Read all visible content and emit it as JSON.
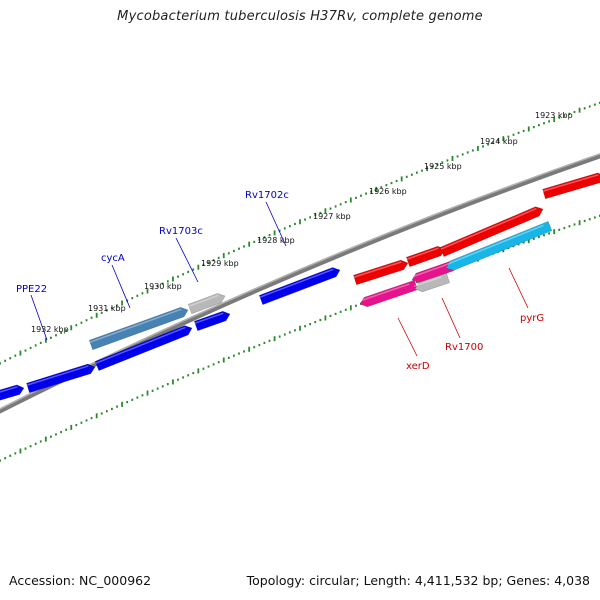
{
  "title": "Mycobacterium tuberculosis H37Rv, complete genome",
  "footer": {
    "accession": "Accession: NC_000962",
    "summary": "Topology: circular; Length: 4,411,532 bp; Genes: 4,038"
  },
  "colors": {
    "backbone": "#808080",
    "ticks": "#2a8a2a",
    "forward_label": "#0000cc",
    "reverse_label": "#cc0000",
    "blue": "#0000ee",
    "steelblue": "#4682b4",
    "grey": "#b8b8b8",
    "red": "#ee0000",
    "magenta": "#e6148c",
    "skyblue": "#18b6e8"
  },
  "scale_labels": [
    "1932 kbp",
    "1931 kbp",
    "1930 kbp",
    "1929 kbp",
    "1928 kbp",
    "1927 kbp",
    "1926 kbp",
    "1925 kbp",
    "1924 kbp",
    "1923 kbp"
  ],
  "gene_labels": {
    "forward": [
      "PPE22",
      "cycA",
      "Rv1703c",
      "Rv1702c"
    ],
    "reverse": [
      "xerD",
      "Rv1700",
      "pyrG"
    ]
  }
}
